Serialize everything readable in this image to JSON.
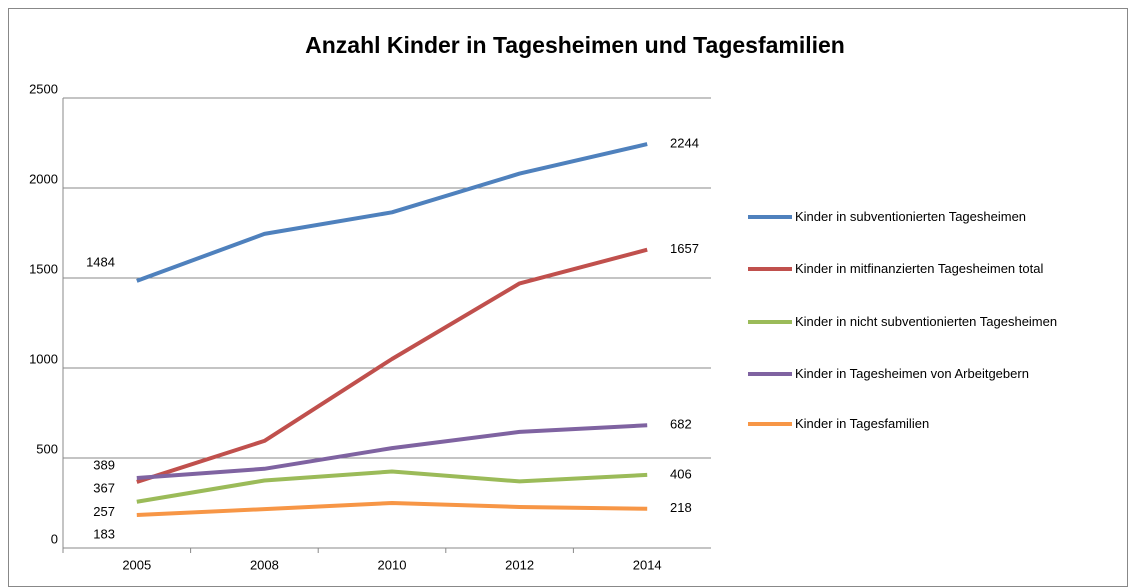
{
  "chart_data": {
    "type": "line",
    "title": "Anzahl Kinder in Tagesheimen und Tagesfamilien",
    "categories": [
      "2005",
      "2008",
      "2010",
      "2012",
      "2014"
    ],
    "series": [
      {
        "name": "Kinder in subventionierten Tagesheimen",
        "color": "#4f81bd",
        "values": [
          1484,
          1745,
          1865,
          2080,
          2244
        ]
      },
      {
        "name": "Kinder in mitfinanzierten Tagesheimen total",
        "color": "#c0504d",
        "values": [
          367,
          595,
          1050,
          1470,
          1657
        ]
      },
      {
        "name": "Kinder in nicht subventionierten Tagesheimen",
        "color": "#9bbb59",
        "values": [
          257,
          375,
          425,
          370,
          406
        ]
      },
      {
        "name": "Kinder in Tagesheimen von Arbeitgebern",
        "color": "#7f63a1",
        "values": [
          389,
          440,
          555,
          645,
          682
        ]
      },
      {
        "name": "Kinder in Tagesfamilien",
        "color": "#f79646",
        "values": [
          183,
          216,
          250,
          228,
          218
        ]
      }
    ],
    "ylim": [
      0,
      2500
    ],
    "yticks": [
      0,
      500,
      1000,
      1500,
      2000,
      2500
    ],
    "grid": true,
    "legend": "right"
  }
}
